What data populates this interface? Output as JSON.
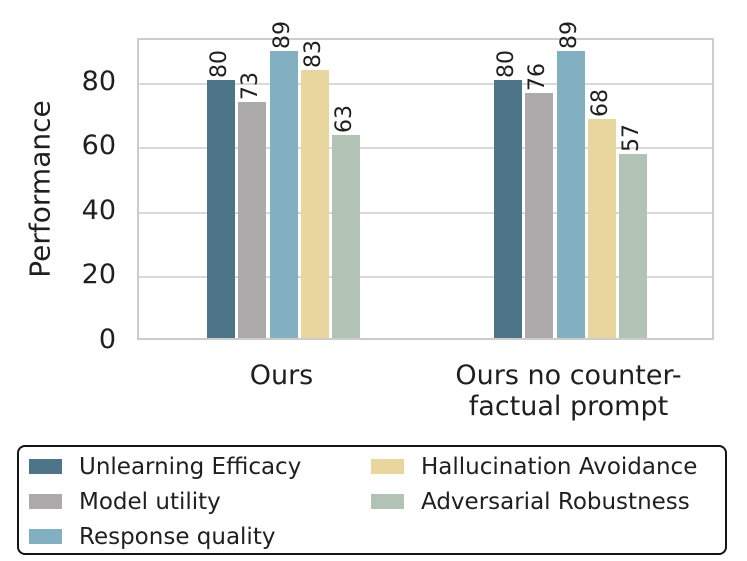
{
  "chart_data": {
    "type": "bar",
    "title": "",
    "xlabel": "",
    "ylabel": "Performance",
    "categories": [
      "Ours",
      "Ours no counter-factual prompt"
    ],
    "category_lines": [
      [
        "Ours"
      ],
      [
        "Ours no counter-",
        "factual prompt"
      ]
    ],
    "yticks": [
      0,
      20,
      40,
      60,
      80
    ],
    "ylim": [
      0,
      93.6
    ],
    "grid": "horizontal",
    "legend_position": "bottom",
    "legend_columns": 2,
    "bar_value_labels_rotation": 90,
    "series": [
      {
        "name": "Unlearning Efficacy",
        "color": "#4e7587",
        "values": [
          80,
          80
        ]
      },
      {
        "name": "Model utility",
        "color": "#adaaab",
        "values": [
          73,
          76
        ]
      },
      {
        "name": "Response quality",
        "color": "#82b0c1",
        "values": [
          89,
          89
        ]
      },
      {
        "name": "Hallucination Avoidance",
        "color": "#e8d69e",
        "values": [
          83,
          68
        ]
      },
      {
        "name": "Adversarial Robustness",
        "color": "#b2c2b5",
        "values": [
          63,
          57
        ]
      }
    ]
  },
  "colors": {
    "background": "#ffffff",
    "text": "#1f1f1f",
    "gridline": "#d9d9d9",
    "spine": "#cccccc",
    "legend_border": "#141414"
  }
}
